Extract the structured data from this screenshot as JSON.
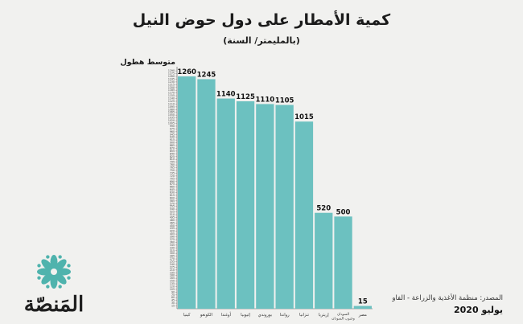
{
  "title": "كمية الأمطار على دول حوض النيل",
  "subtitle": "(بالمليمتر/ السنة)",
  "source": "المصدر: منظمة الأغذية والزراعة - الفاو",
  "date": "يوليو 2020",
  "logo_text": "المَنصّة",
  "colors": {
    "bar": "#6cc1c0",
    "bar_stroke": "#e8f4f3",
    "logo": "#4fb3ad",
    "text": "#1b1b1b"
  },
  "chart_data": {
    "type": "bar",
    "title": "كمية الأمطار على دول حوض النيل",
    "subtitle": "(بالمليمتر/ السنة)",
    "ylabel": "متوسط هطول",
    "xlabel": "",
    "categories": [
      "كينيا",
      "الكونغو",
      "أوغندا",
      "إثيوبيا",
      "بوروندي",
      "رواندا",
      "تنزانيا",
      "إريتريا",
      "السودان وجنوب السودان",
      "مصر"
    ],
    "values": [
      1260,
      1245,
      1140,
      1125,
      1110,
      1105,
      1015,
      520,
      500,
      15
    ],
    "value_labels": [
      "1260",
      "1245",
      "1140",
      "1125",
      "1110",
      "1105",
      "1015",
      "520",
      "500",
      "15"
    ],
    "ylim": [
      0,
      1295
    ],
    "ytick_step": 15,
    "grid": false,
    "legend": "none"
  }
}
